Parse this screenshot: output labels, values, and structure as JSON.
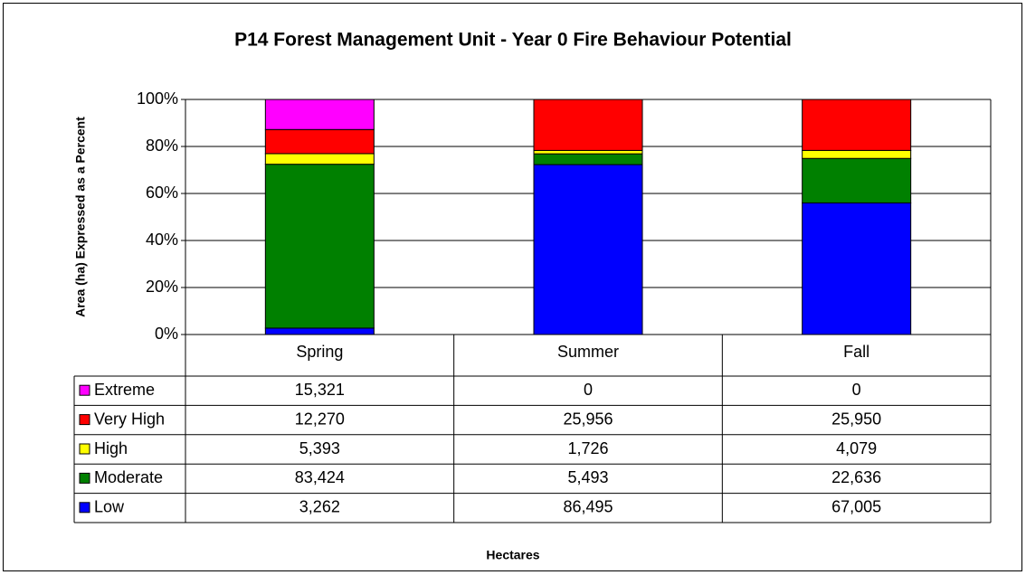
{
  "chart_data": {
    "type": "bar",
    "stacking": "percent",
    "title": "P14 Forest Management Unit - Year 0 Fire Behaviour Potential",
    "ylabel": "Area (ha) Expressed as a Percent",
    "xlabel": "Hectares",
    "categories": [
      "Spring",
      "Summer",
      "Fall"
    ],
    "ylim": [
      0,
      100
    ],
    "yticks": [
      {
        "value": 0,
        "label": "0%"
      },
      {
        "value": 20,
        "label": "20%"
      },
      {
        "value": 40,
        "label": "40%"
      },
      {
        "value": 60,
        "label": "60%"
      },
      {
        "value": 80,
        "label": "80%"
      },
      {
        "value": 100,
        "label": "100%"
      }
    ],
    "grid": true,
    "series": [
      {
        "name": "Extreme",
        "color": "#ff00ff",
        "values": [
          15321,
          0,
          0
        ],
        "value_labels": [
          "15,321",
          "0",
          "0"
        ]
      },
      {
        "name": "Very High",
        "color": "#ff0000",
        "values": [
          12270,
          25956,
          25950
        ],
        "value_labels": [
          "12,270",
          "25,956",
          "25,950"
        ]
      },
      {
        "name": "High",
        "color": "#ffff00",
        "values": [
          5393,
          1726,
          4079
        ],
        "value_labels": [
          "5,393",
          "1,726",
          "4,079"
        ]
      },
      {
        "name": "Moderate",
        "color": "#008000",
        "values": [
          83424,
          5493,
          22636
        ],
        "value_labels": [
          "83,424",
          "5,493",
          "22,636"
        ]
      },
      {
        "name": "Low",
        "color": "#0000ff",
        "values": [
          3262,
          86495,
          67005
        ],
        "value_labels": [
          "3,262",
          "86,495",
          "67,005"
        ]
      }
    ]
  }
}
